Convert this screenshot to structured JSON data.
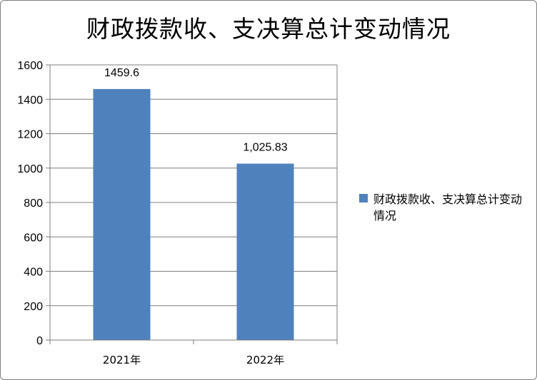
{
  "chart_data": {
    "type": "bar",
    "title": "财政拨款收、支决算总计变动情况",
    "categories": [
      "2021年",
      "2022年"
    ],
    "series": [
      {
        "name": "财政拨款收、支决算总计变动情况",
        "values": [
          1459.6,
          1025.83
        ],
        "labels": [
          "1459.6",
          "1,025.83"
        ]
      }
    ],
    "ylim": [
      0,
      1600
    ],
    "yticks": [
      0,
      200,
      400,
      600,
      800,
      1000,
      1200,
      1400,
      1600
    ],
    "grid": true,
    "legend_position": "right",
    "colors": {
      "bar": "#4f81bd",
      "grid": "#7f7f7f"
    }
  }
}
